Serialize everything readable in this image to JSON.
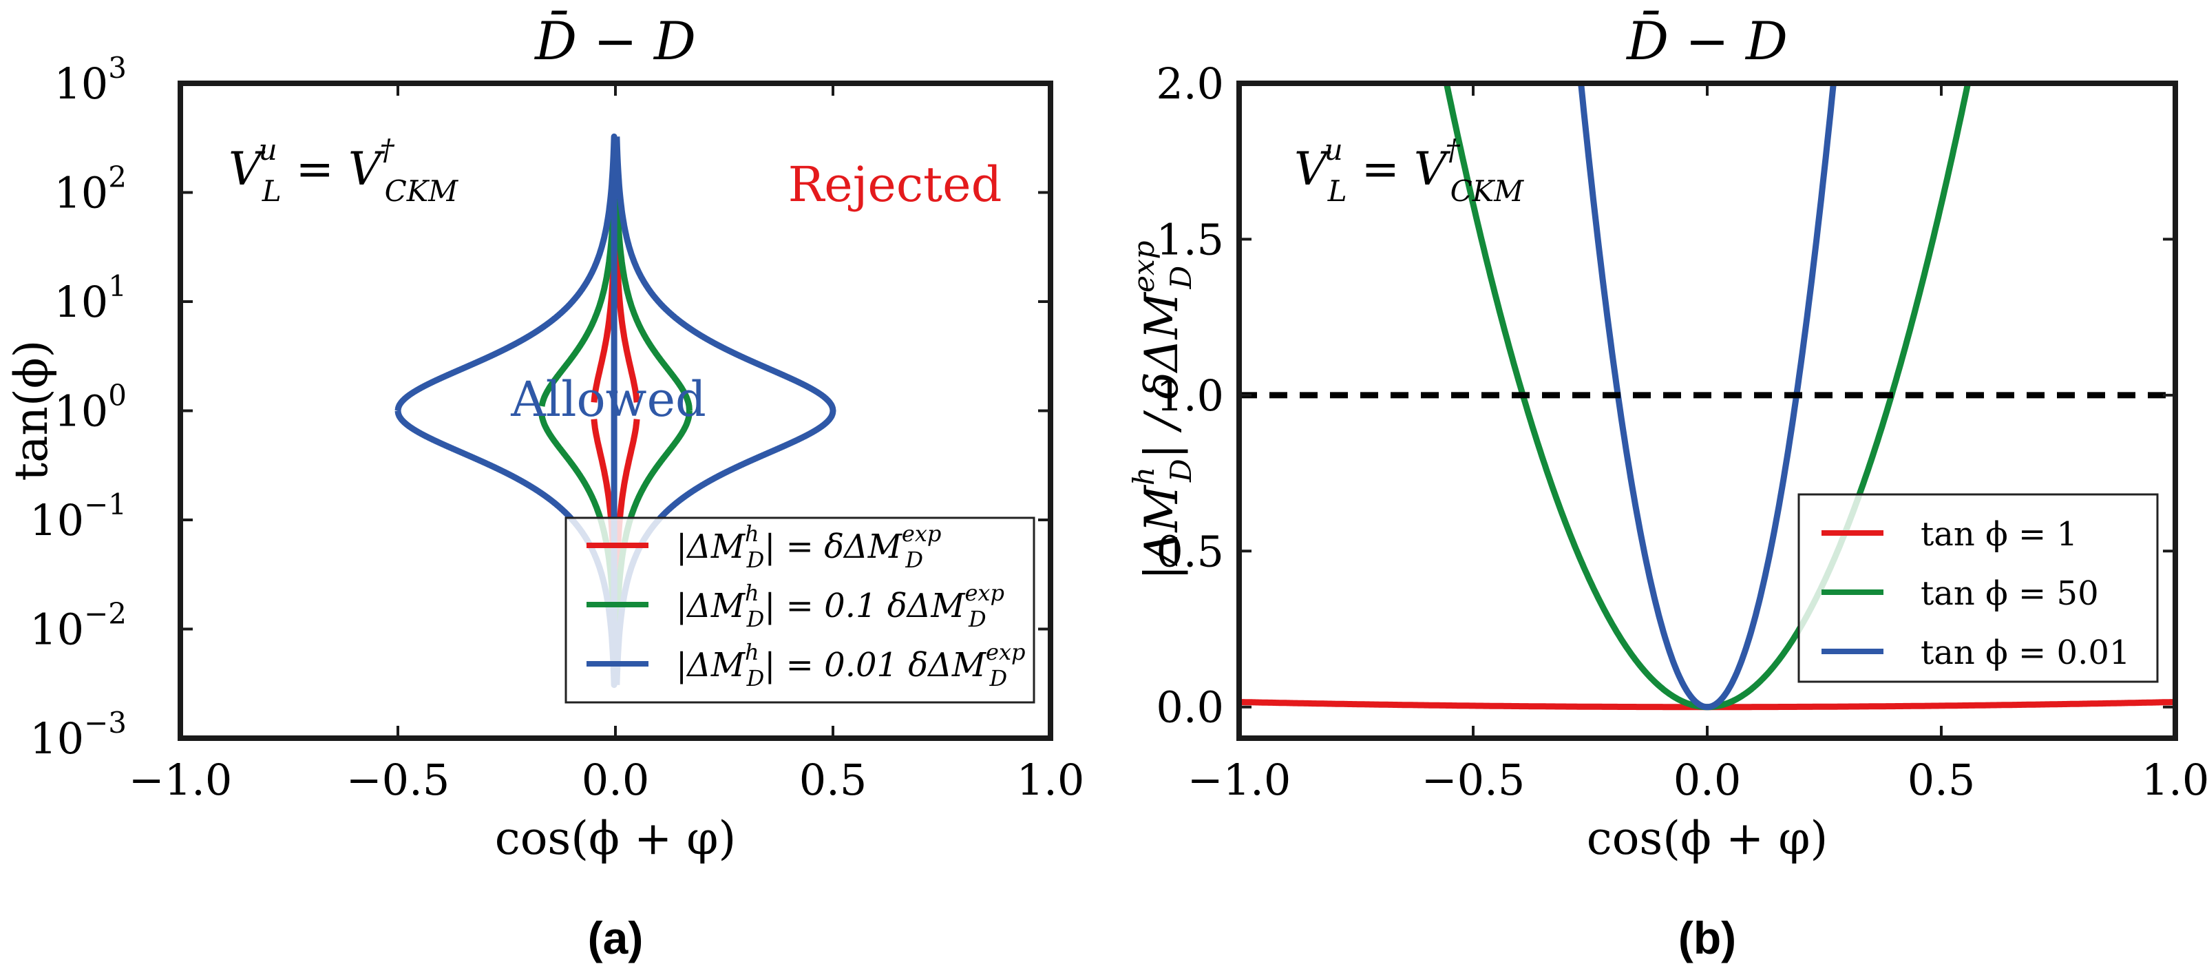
{
  "chart_data": [
    {
      "id": "a",
      "type": "line",
      "caption": "(a)",
      "title": "D̄ − D",
      "xlabel": "cos(ϕ + φ)",
      "ylabel": "tan(ϕ)",
      "xlim": [
        -1.0,
        1.0
      ],
      "ylim_log10": [
        -3,
        3
      ],
      "yscale": "log",
      "xticks": [
        -1.0,
        -0.5,
        0.0,
        0.5,
        1.0
      ],
      "xtick_labels": [
        "−1.0",
        "−0.5",
        "0.0",
        "0.5",
        "1.0"
      ],
      "ytick_bases": [
        "10",
        "10",
        "10",
        "10",
        "10",
        "10",
        "10"
      ],
      "ytick_exponents": [
        "−3",
        "−2",
        "−1",
        "0",
        "1",
        "2",
        "3"
      ],
      "annotation_vl": {
        "base": "V",
        "sub": "L",
        "sup": "u",
        "eq": " = V",
        "sub2": "CKM",
        "sup2": "†"
      },
      "region_labels": {
        "rejected": "Rejected",
        "allowed": "Allowed"
      },
      "legend_position": "lower-right",
      "series": [
        {
          "name": "|ΔM_D^h| = δΔM_D^exp",
          "legend": {
            "pre": "|ΔM",
            "sub": "D",
            "sup": "h",
            "mid": "| = δΔM",
            "sub2": "D",
            "sup2": "exp"
          },
          "color": "#e41a1c",
          "kappa": 0.05,
          "legend_label": "|ΔM_D^h| = δΔM_D^exp"
        },
        {
          "name": "|ΔM_D^h| = 0.1 δΔM_D^exp",
          "legend": {
            "pre": "|ΔM",
            "sub": "D",
            "sup": "h",
            "mid": "| = 0.1 δΔM",
            "sub2": "D",
            "sup2": "exp"
          },
          "color": "#138a3a",
          "kappa": 0.17,
          "legend_label": "|ΔM_D^h| = 0.1 δΔM_D^exp"
        },
        {
          "name": "|ΔM_D^h| = 0.01 δΔM_D^exp",
          "legend": {
            "pre": "|ΔM",
            "sub": "D",
            "sup": "h",
            "mid": "| = 0.01 δΔM",
            "sub2": "D",
            "sup2": "exp"
          },
          "color": "#2f58a7",
          "kappa": 0.5,
          "legend_label": "|ΔM_D^h| = 0.01 δΔM_D^exp"
        }
      ]
    },
    {
      "id": "b",
      "type": "line",
      "caption": "(b)",
      "title": "D̄ − D",
      "xlabel": "cos(ϕ + φ)",
      "ylabel": "|ΔM_D^h| / δΔM_D^exp",
      "ylabel_parts": {
        "pre": "|ΔM",
        "sub": "D",
        "sup": "h",
        "mid": "| / δΔM",
        "sub2": "D",
        "sup2": "exp"
      },
      "xlim": [
        -1.0,
        1.0
      ],
      "ylim": [
        -0.1,
        2.0
      ],
      "xticks": [
        -1.0,
        -0.5,
        0.0,
        0.5,
        1.0
      ],
      "xtick_labels": [
        "−1.0",
        "−0.5",
        "0.0",
        "0.5",
        "1.0"
      ],
      "yticks": [
        0.0,
        0.5,
        1.0,
        1.5,
        2.0
      ],
      "ytick_labels": [
        "0.0",
        "0.5",
        "1.0",
        "1.5",
        "2.0"
      ],
      "annotation_vl": {
        "base": "V",
        "sub": "L",
        "sup": "u",
        "eq": " = V",
        "sub2": "CKM",
        "sup2": "†"
      },
      "reference_line": {
        "y": 1.0,
        "style": "dashed",
        "color": "#000000"
      },
      "legend_position": "lower-right",
      "series": [
        {
          "name": "tan ϕ = 1",
          "legend_label": "tan ϕ = 1",
          "color": "#e41a1c",
          "x": [
            -1.0,
            -0.5,
            0.0,
            0.5,
            1.0
          ],
          "y": [
            0.016,
            0.004,
            0.0,
            0.004,
            0.016
          ]
        },
        {
          "name": "tan ϕ = 50",
          "legend_label": "tan ϕ = 50",
          "color": "#138a3a",
          "x": [
            -0.56,
            -0.385,
            -0.2,
            0.0,
            0.2,
            0.385,
            0.56
          ],
          "y": [
            2.0,
            1.0,
            0.27,
            0.0,
            0.27,
            1.0,
            2.0
          ]
        },
        {
          "name": "tan ϕ = 0.01",
          "legend_label": "tan ϕ = 0.01",
          "color": "#2f58a7",
          "x": [
            -0.27,
            -0.19,
            -0.1,
            0.0,
            0.1,
            0.19,
            0.27
          ],
          "y": [
            2.0,
            1.0,
            0.28,
            0.0,
            0.28,
            1.0,
            2.0
          ]
        }
      ]
    }
  ]
}
